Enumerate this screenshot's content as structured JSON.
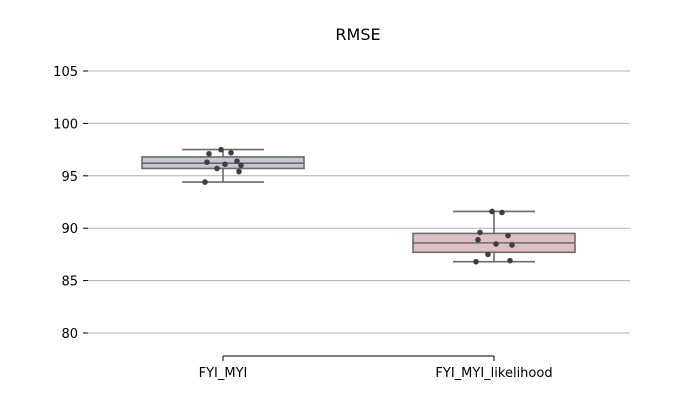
{
  "chart_data": {
    "type": "box",
    "title": "RMSE",
    "xlabel": "",
    "ylabel": "",
    "ylim": [
      78,
      106
    ],
    "yticks": [
      80,
      85,
      90,
      95,
      100,
      105
    ],
    "categories": [
      "FYI_MYI",
      "FYI_MYI_likelihood"
    ],
    "grid": "horizontal",
    "boxes": [
      {
        "category": "FYI_MYI",
        "color": "#c2c8d6",
        "whisker_low": 94.4,
        "q1": 95.7,
        "median": 96.2,
        "q3": 96.8,
        "whisker_high": 97.5,
        "points": [
          97.5,
          97.2,
          97.1,
          96.4,
          96.3,
          96.1,
          96.0,
          95.7,
          95.4,
          94.4
        ]
      },
      {
        "category": "FYI_MYI_likelihood",
        "color": "#dfc0c2",
        "whisker_low": 86.8,
        "q1": 87.7,
        "median": 88.6,
        "q3": 89.5,
        "whisker_high": 91.6,
        "points": [
          91.6,
          91.5,
          89.6,
          89.3,
          88.9,
          88.5,
          88.4,
          87.5,
          86.9,
          86.8
        ]
      }
    ]
  }
}
